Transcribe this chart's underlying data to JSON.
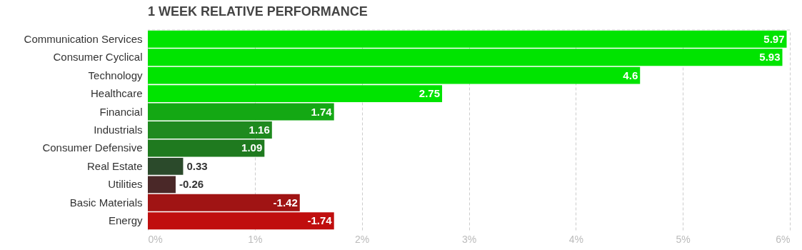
{
  "chart_data": {
    "type": "bar",
    "orientation": "horizontal",
    "title": "1 WEEK RELATIVE PERFORMANCE",
    "categories": [
      "Communication Services",
      "Consumer Cyclical",
      "Technology",
      "Healthcare",
      "Financial",
      "Industrials",
      "Consumer Defensive",
      "Real Estate",
      "Utilities",
      "Basic Materials",
      "Energy"
    ],
    "values": [
      5.97,
      5.93,
      4.6,
      2.75,
      1.74,
      1.16,
      1.09,
      0.33,
      -0.26,
      -1.42,
      -1.74
    ],
    "base": [
      0,
      0,
      0,
      0,
      0,
      0,
      0,
      0,
      0.26,
      1.42,
      1.74
    ],
    "colors": [
      "#00e400",
      "#00e400",
      "#00e400",
      "#00e400",
      "#14a814",
      "#1f8a1f",
      "#1f7a1f",
      "#2b4a2b",
      "#4a2828",
      "#a01414",
      "#c00e0e"
    ],
    "xlim": [
      0,
      6
    ],
    "xticks": [
      {
        "value": 0,
        "label": "0%"
      },
      {
        "value": 1,
        "label": "1%"
      },
      {
        "value": 2,
        "label": "2%"
      },
      {
        "value": 3,
        "label": "3%"
      },
      {
        "value": 4,
        "label": "4%"
      },
      {
        "value": 5,
        "label": "5%"
      },
      {
        "value": 6,
        "label": "6%"
      }
    ],
    "grid": "x",
    "data_labels": true
  }
}
